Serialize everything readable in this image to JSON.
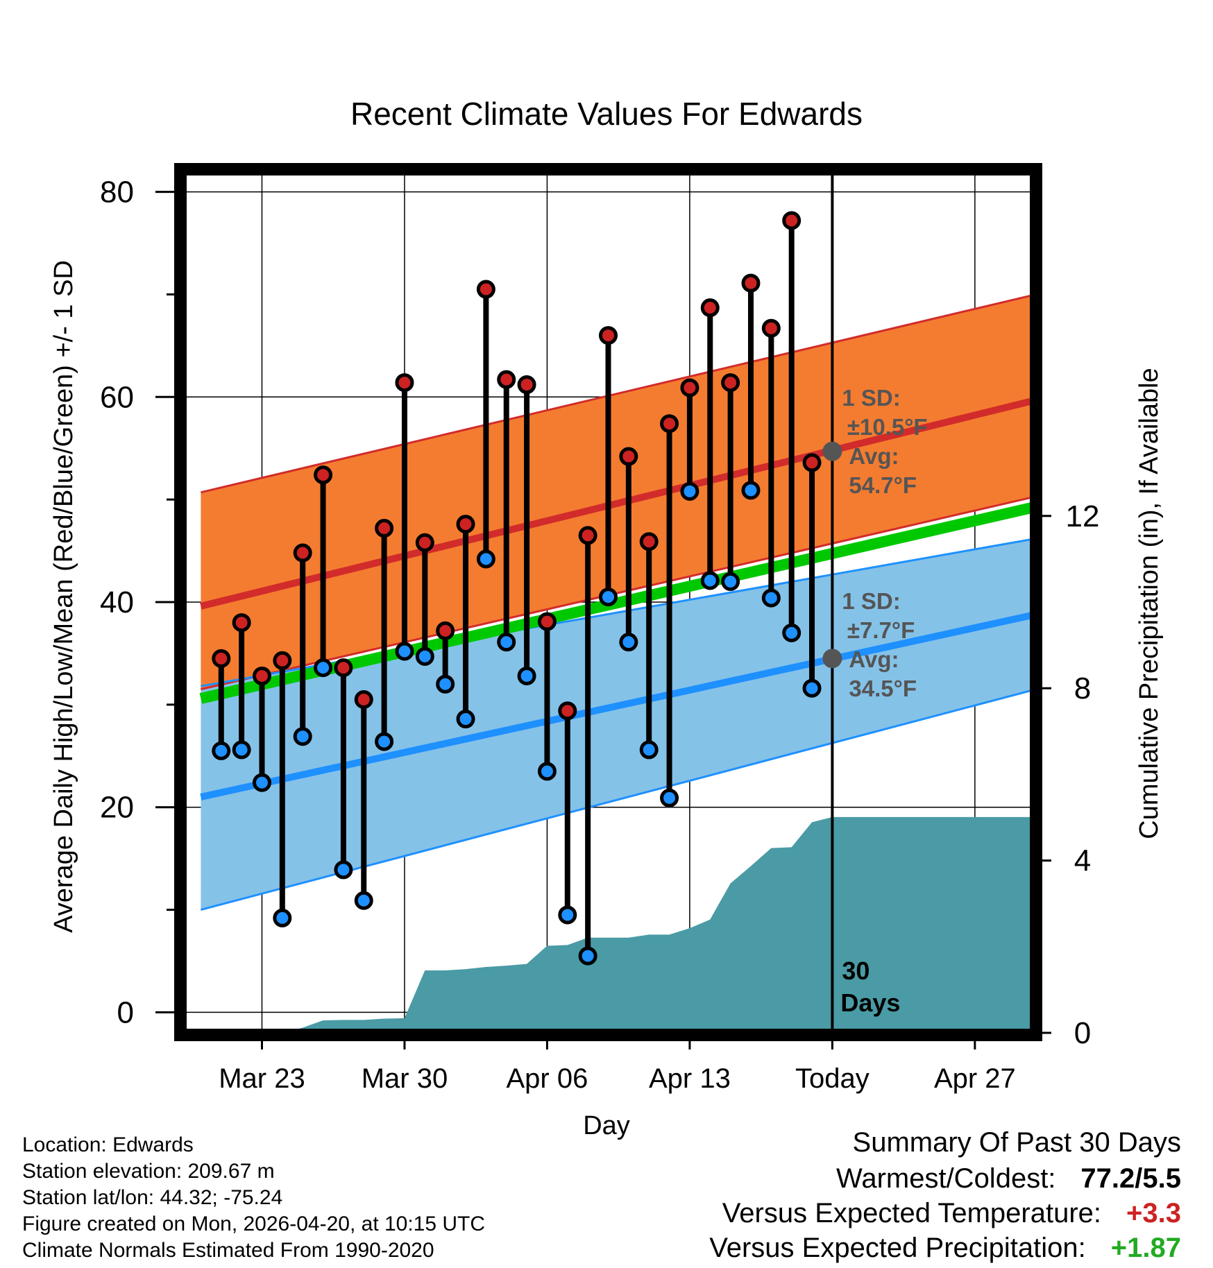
{
  "chart_data": {
    "type": "climate-range",
    "title": "Recent Climate Values For Edwards",
    "xlabel": "Day",
    "ylabel_left": "Average Daily High/Low/Mean (Red/Blue/Green) +/- 1 SD",
    "ylabel_right": "Cumulative Precipitation (in), If Available",
    "ylim_left": [
      -2,
      82
    ],
    "yticks_left": [
      0,
      20,
      40,
      60,
      80
    ],
    "ylim_right": [
      0,
      20
    ],
    "yticks_right": [
      0,
      4,
      8,
      12
    ],
    "xlim_days": [
      -31.9,
      9.9
    ],
    "xticks": [
      {
        "day": -28,
        "label": "Mar 23"
      },
      {
        "day": -21,
        "label": "Mar 30"
      },
      {
        "day": -14,
        "label": "Apr 06"
      },
      {
        "day": -7,
        "label": "Apr 13"
      },
      {
        "day": 0,
        "label": "Today"
      },
      {
        "day": 7,
        "label": "Apr 27"
      }
    ],
    "daily_observations": {
      "days": [
        -30,
        -29,
        -28,
        -27,
        -26,
        -25,
        -24,
        -23,
        -22,
        -21,
        -20,
        -19,
        -18,
        -17,
        -16,
        -15,
        -14,
        -13,
        -12,
        -11,
        -10,
        -9,
        -8,
        -7,
        -6,
        -5,
        -4,
        -3,
        -2,
        -1
      ],
      "high": [
        34.5,
        38.0,
        32.8,
        34.3,
        44.8,
        52.4,
        33.6,
        30.5,
        47.2,
        61.4,
        45.8,
        37.2,
        47.6,
        70.5,
        61.7,
        61.2,
        38.1,
        29.4,
        46.5,
        66.0,
        54.2,
        45.9,
        57.4,
        60.9,
        68.7,
        61.4,
        71.1,
        66.7,
        77.2,
        53.6
      ],
      "low": [
        25.5,
        25.6,
        22.4,
        9.2,
        26.9,
        33.6,
        13.9,
        10.9,
        26.4,
        35.2,
        34.7,
        32.0,
        28.6,
        44.2,
        36.1,
        32.8,
        23.5,
        9.5,
        5.5,
        40.5,
        36.1,
        25.6,
        20.9,
        50.8,
        42.1,
        42.0,
        50.9,
        40.4,
        37.0,
        31.6
      ]
    },
    "normals": {
      "days_span": [
        -31,
        10
      ],
      "high_mean": [
        39.6,
        59.7
      ],
      "high_sd_band": {
        "lower": [
          31.5,
          50.3
        ],
        "upper": [
          50.7,
          70.0
        ]
      },
      "mean_temperature": [
        30.6,
        49.3
      ],
      "low_mean": [
        21.0,
        38.8
      ],
      "low_sd_band": {
        "lower": [
          10.0,
          31.5
        ],
        "upper": [
          31.8,
          46.2
        ]
      }
    },
    "today_annotations": {
      "high_sd_lines": [
        "1 SD:",
        "±10.5°F",
        "Avg:",
        "54.7°F"
      ],
      "high_avg": 54.7,
      "low_sd_lines": [
        "1 SD:",
        "±7.7°F",
        "Avg:",
        "34.5°F"
      ],
      "low_avg": 34.5,
      "window_lines": [
        "30",
        "Days"
      ]
    },
    "cumulative_precipitation_in": {
      "days": [
        -31,
        -27,
        -26,
        -25,
        -24,
        -23,
        -22,
        -21,
        -20,
        -19,
        -18,
        -17,
        -16,
        -15,
        -14,
        -13,
        -12,
        -11,
        -10,
        -9,
        -8,
        -7,
        -6,
        -5,
        -4,
        -3,
        -2,
        -1,
        0,
        10
      ],
      "values": [
        0,
        0,
        0.12,
        0.29,
        0.3,
        0.3,
        0.33,
        0.34,
        1.45,
        1.45,
        1.48,
        1.53,
        1.56,
        1.6,
        2.02,
        2.04,
        2.21,
        2.21,
        2.21,
        2.28,
        2.28,
        2.43,
        2.63,
        3.47,
        3.87,
        4.29,
        4.31,
        4.89,
        5.01,
        5.01
      ]
    },
    "colors": {
      "high_band": "#f47c30",
      "high_line": "#d22b2b",
      "mean_line": "#00c800",
      "low_band": "#85c2e8",
      "low_line": "#1e90ff",
      "precip": "#4a9ba5",
      "high_dot": "#cc2222",
      "low_dot": "#1e90ff",
      "annotation": "#555555"
    }
  },
  "info": {
    "location": "Location: Edwards",
    "elevation": "Station elevation: 209.67 m",
    "latlon": "Station lat/lon: 44.32; -75.24",
    "created": "Figure created on Mon, 2026-04-20, at 10:15 UTC",
    "normals_note": "Climate Normals Estimated From 1990-2020"
  },
  "summary": {
    "title": "Summary Of Past 30 Days",
    "warmest_coldest_label": "Warmest/Coldest:",
    "warmest_coldest_value": "77.2/5.5",
    "temp_label": "Versus Expected Temperature:",
    "temp_value": "+3.3",
    "temp_color": "#cc2222",
    "precip_label": "Versus Expected Precipitation:",
    "precip_value": "+1.87",
    "precip_color": "#22aa22"
  }
}
